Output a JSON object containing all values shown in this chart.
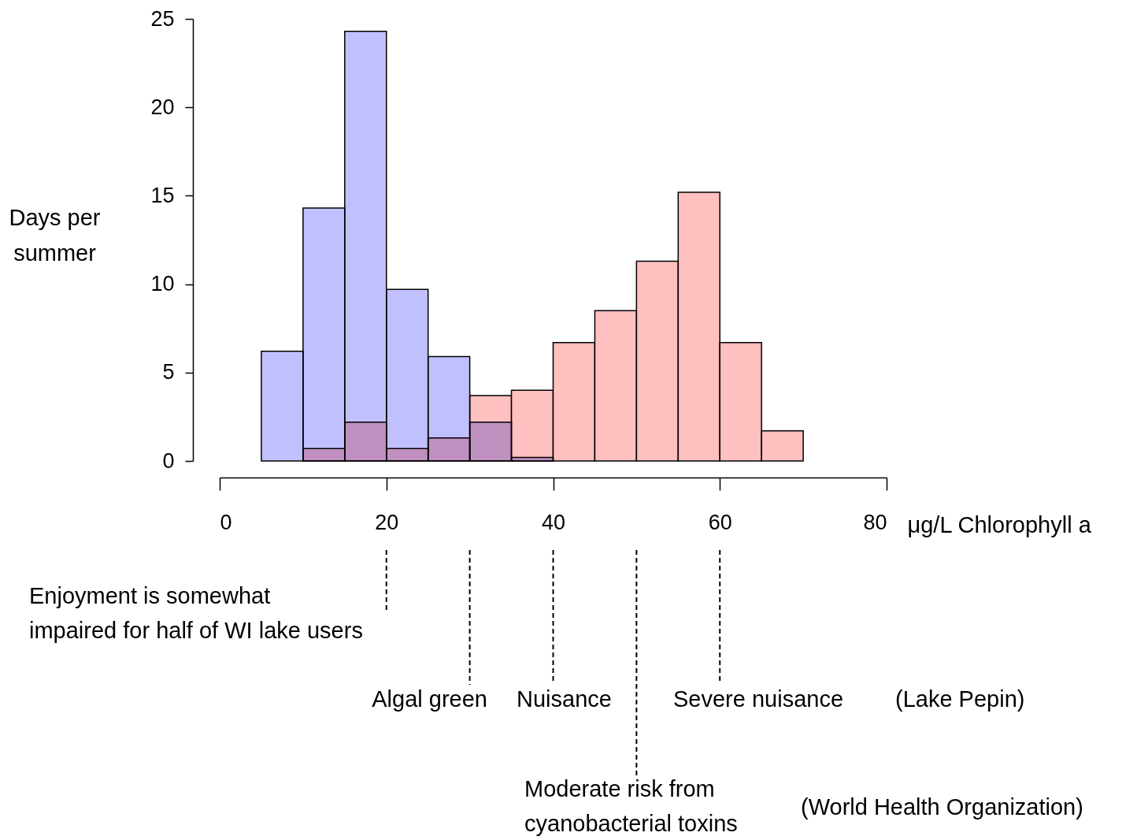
{
  "chart_data": {
    "type": "histogram",
    "xlabel": "μg/L Chlorophyll a",
    "ylabel": "Days per summer",
    "bins": [
      5,
      10,
      15,
      20,
      25,
      30,
      35,
      40,
      45,
      50,
      55,
      60,
      65,
      70
    ],
    "series": [
      {
        "color": "#ffc0c0",
        "values": [
          null,
          0.7,
          2.2,
          0.7,
          1.3,
          3.7,
          4.0,
          6.7,
          8.5,
          11.3,
          15.2,
          6.7,
          1.7
        ]
      },
      {
        "color": "#c0c0ff",
        "values": [
          6.2,
          14.3,
          24.3,
          9.7,
          5.9,
          2.2,
          0.2,
          null,
          null,
          null,
          null,
          null,
          null
        ]
      }
    ],
    "xlim": [
      0,
      80
    ],
    "xticks": [
      0,
      20,
      40,
      60,
      80
    ],
    "ylim": [
      0,
      25
    ],
    "yticks": [
      0,
      5,
      10,
      15,
      20,
      25
    ],
    "grid": false,
    "ref_lines": [
      {
        "axis": "x",
        "value": 20,
        "label": "Enjoyment is somewhat\nimpaired for half of WI lake users",
        "line_style": "dashed"
      },
      {
        "axis": "x",
        "value": 30,
        "label": "Algal green",
        "line_style": "dashed"
      },
      {
        "axis": "x",
        "value": 40,
        "label": "Nuisance",
        "line_style": "dashed"
      },
      {
        "axis": "x",
        "value": 50,
        "label": "Moderate risk from\ncyanobacterial toxins",
        "line_style": "dashed"
      },
      {
        "axis": "x",
        "value": 60,
        "label": "Severe nuisance",
        "line_style": "dashed"
      }
    ],
    "annotations": [
      "(Lake Pepin)",
      "(World Health Organization)"
    ]
  }
}
